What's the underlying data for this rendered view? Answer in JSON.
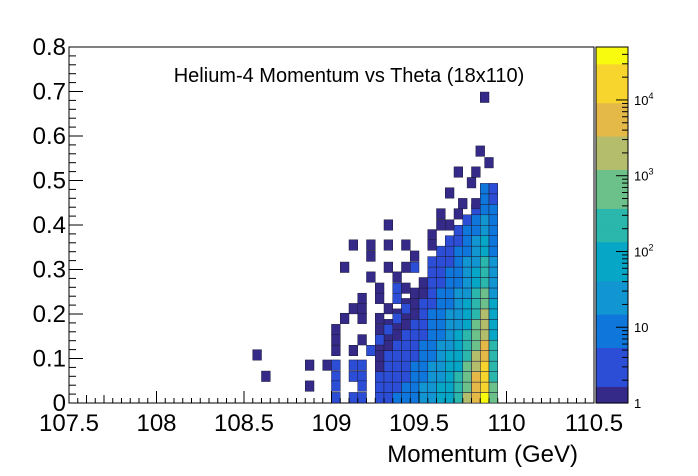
{
  "chart_data": {
    "type": "heatmap",
    "title": "Helium-4 Momentum vs Theta (18x110)",
    "xlabel": "Momentum (GeV)",
    "ylabel": "",
    "xlim": [
      107.5,
      110.5
    ],
    "ylim": [
      0,
      0.8
    ],
    "x_ticks": [
      "107.5",
      "108",
      "108.5",
      "109",
      "109.5",
      "110",
      "110.5"
    ],
    "y_ticks": [
      "0",
      "0.1",
      "0.2",
      "0.3",
      "0.4",
      "0.5",
      "0.6",
      "0.7",
      "0.8"
    ],
    "bin_width_x": 0.05,
    "bin_width_y": 0.0235,
    "z_scale": "log",
    "z_range": [
      1,
      50000
    ],
    "z_ticks": [
      "1",
      "10",
      "10^2",
      "10^3",
      "10^4"
    ],
    "colormap": [
      "#352a87",
      "#2c4ed7",
      "#0f77db",
      "#1196d2",
      "#06a7c6",
      "#2bb7ab",
      "#6cc08a",
      "#b3bd6b",
      "#e4b947",
      "#f8d52c",
      "#f9fb0e"
    ],
    "bins": [
      {
        "x": 109.875,
        "y": 0.687,
        "z": 1
      },
      {
        "x": 109.85,
        "y": 0.566,
        "z": 1
      },
      {
        "x": 109.9,
        "y": 0.54,
        "z": 1
      },
      {
        "x": 109.725,
        "y": 0.519,
        "z": 1
      },
      {
        "x": 109.825,
        "y": 0.519,
        "z": 1
      },
      {
        "x": 109.8,
        "y": 0.495,
        "z": 1
      },
      {
        "x": 109.675,
        "y": 0.472,
        "z": 1
      },
      {
        "x": 109.75,
        "y": 0.448,
        "z": 1
      },
      {
        "x": 109.825,
        "y": 0.448,
        "z": 1
      },
      {
        "x": 109.625,
        "y": 0.425,
        "z": 1
      },
      {
        "x": 109.725,
        "y": 0.425,
        "z": 1
      },
      {
        "x": 109.325,
        "y": 0.4,
        "z": 1
      },
      {
        "x": 109.625,
        "y": 0.4,
        "z": 1
      },
      {
        "x": 109.675,
        "y": 0.4,
        "z": 1
      },
      {
        "x": 109.575,
        "y": 0.378,
        "z": 1
      },
      {
        "x": 109.125,
        "y": 0.355,
        "z": 1
      },
      {
        "x": 109.225,
        "y": 0.355,
        "z": 1
      },
      {
        "x": 109.325,
        "y": 0.355,
        "z": 1
      },
      {
        "x": 109.425,
        "y": 0.355,
        "z": 1
      },
      {
        "x": 109.575,
        "y": 0.355,
        "z": 1
      },
      {
        "x": 109.225,
        "y": 0.33,
        "z": 1
      },
      {
        "x": 109.475,
        "y": 0.33,
        "z": 1
      },
      {
        "x": 109.075,
        "y": 0.305,
        "z": 1
      },
      {
        "x": 109.325,
        "y": 0.305,
        "z": 1
      },
      {
        "x": 109.425,
        "y": 0.305,
        "z": 1
      },
      {
        "x": 109.475,
        "y": 0.305,
        "z": 2
      },
      {
        "x": 109.225,
        "y": 0.283,
        "z": 1
      },
      {
        "x": 109.375,
        "y": 0.283,
        "z": 1
      },
      {
        "x": 109.275,
        "y": 0.258,
        "z": 1
      },
      {
        "x": 109.375,
        "y": 0.258,
        "z": 2
      },
      {
        "x": 109.425,
        "y": 0.258,
        "z": 1
      },
      {
        "x": 109.175,
        "y": 0.235,
        "z": 1
      },
      {
        "x": 109.275,
        "y": 0.235,
        "z": 1
      },
      {
        "x": 109.375,
        "y": 0.235,
        "z": 2
      },
      {
        "x": 109.125,
        "y": 0.212,
        "z": 1
      },
      {
        "x": 109.175,
        "y": 0.212,
        "z": 1
      },
      {
        "x": 109.325,
        "y": 0.212,
        "z": 1
      },
      {
        "x": 109.425,
        "y": 0.212,
        "z": 3
      },
      {
        "x": 109.075,
        "y": 0.19,
        "z": 1
      },
      {
        "x": 109.175,
        "y": 0.19,
        "z": 1
      },
      {
        "x": 109.275,
        "y": 0.19,
        "z": 1
      },
      {
        "x": 109.375,
        "y": 0.19,
        "z": 2
      },
      {
        "x": 109.025,
        "y": 0.165,
        "z": 1
      },
      {
        "x": 109.275,
        "y": 0.165,
        "z": 1
      },
      {
        "x": 109.325,
        "y": 0.165,
        "z": 2
      },
      {
        "x": 109.025,
        "y": 0.142,
        "z": 1
      },
      {
        "x": 109.175,
        "y": 0.142,
        "z": 1
      },
      {
        "x": 109.275,
        "y": 0.142,
        "z": 2
      },
      {
        "x": 109.025,
        "y": 0.118,
        "z": 1
      },
      {
        "x": 109.125,
        "y": 0.118,
        "z": 1
      },
      {
        "x": 109.225,
        "y": 0.118,
        "z": 2
      },
      {
        "x": 108.575,
        "y": 0.108,
        "z": 1
      },
      {
        "x": 108.875,
        "y": 0.085,
        "z": 1
      },
      {
        "x": 108.975,
        "y": 0.085,
        "z": 1
      },
      {
        "x": 109.025,
        "y": 0.085,
        "z": 2
      },
      {
        "x": 109.125,
        "y": 0.085,
        "z": 2
      },
      {
        "x": 109.175,
        "y": 0.085,
        "z": 2
      },
      {
        "x": 108.625,
        "y": 0.06,
        "z": 1
      },
      {
        "x": 109.025,
        "y": 0.06,
        "z": 2
      },
      {
        "x": 109.125,
        "y": 0.06,
        "z": 2
      },
      {
        "x": 109.175,
        "y": 0.06,
        "z": 3
      },
      {
        "x": 108.875,
        "y": 0.038,
        "z": 1
      },
      {
        "x": 109.025,
        "y": 0.038,
        "z": 2
      },
      {
        "x": 109.175,
        "y": 0.038,
        "z": 3
      },
      {
        "x": 109.025,
        "y": 0.012,
        "z": 2
      },
      {
        "x": 109.125,
        "y": 0.012,
        "z": 3
      },
      {
        "x": 109.175,
        "y": 0.012,
        "z": 5
      }
    ],
    "filled_region": {
      "description_free": true,
      "columns": [
        {
          "x": 109.275,
          "ytop": 0.145,
          "zb": 3,
          "zt": 1
        },
        {
          "x": 109.325,
          "ytop": 0.19,
          "zb": 4,
          "zt": 1
        },
        {
          "x": 109.375,
          "ytop": 0.21,
          "zb": 6,
          "zt": 1
        },
        {
          "x": 109.425,
          "ytop": 0.235,
          "zb": 8,
          "zt": 1
        },
        {
          "x": 109.475,
          "ytop": 0.258,
          "zb": 12,
          "zt": 1
        },
        {
          "x": 109.525,
          "ytop": 0.283,
          "zb": 20,
          "zt": 1
        },
        {
          "x": 109.575,
          "ytop": 0.33,
          "zb": 35,
          "zt": 2
        },
        {
          "x": 109.625,
          "ytop": 0.355,
          "zb": 60,
          "zt": 2
        },
        {
          "x": 109.675,
          "ytop": 0.378,
          "zb": 120,
          "zt": 3
        },
        {
          "x": 109.725,
          "ytop": 0.4,
          "zb": 300,
          "zt": 3
        },
        {
          "x": 109.775,
          "ytop": 0.425,
          "zb": 1200,
          "zt": 4
        },
        {
          "x": 109.825,
          "ytop": 0.448,
          "zb": 8000,
          "zt": 5
        },
        {
          "x": 109.875,
          "ytop": 0.495,
          "zb": 40000,
          "zt": 6
        },
        {
          "x": 109.925,
          "ytop": 0.495,
          "zb": 600,
          "zt": 3
        }
      ]
    }
  }
}
